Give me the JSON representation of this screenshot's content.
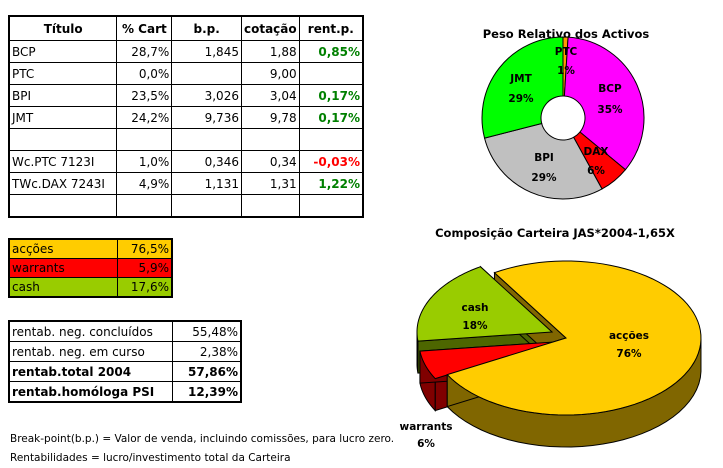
{
  "main_table": {
    "headers": [
      "Título",
      "% Cart",
      "b.p.",
      "cotação",
      "rent.p."
    ],
    "rows": [
      {
        "titulo": "BCP",
        "cart": "28,7%",
        "bp": "1,845",
        "cotacao": "1,88",
        "rent": "0,85%",
        "rent_sign": "pos"
      },
      {
        "titulo": "PTC",
        "cart": "0,0%",
        "bp": "",
        "cotacao": "9,00",
        "rent": "",
        "rent_sign": ""
      },
      {
        "titulo": "BPI",
        "cart": "23,5%",
        "bp": "3,026",
        "cotacao": "3,04",
        "rent": "0,17%",
        "rent_sign": "pos"
      },
      {
        "titulo": "JMT",
        "cart": "24,2%",
        "bp": "9,736",
        "cotacao": "9,78",
        "rent": "0,17%",
        "rent_sign": "pos"
      },
      {
        "titulo": "",
        "cart": "",
        "bp": "",
        "cotacao": "",
        "rent": "",
        "rent_sign": ""
      },
      {
        "titulo": "Wc.PTC 7123I",
        "cart": "1,0%",
        "bp": "0,346",
        "cotacao": "0,34",
        "rent": "-0,03%",
        "rent_sign": "neg"
      },
      {
        "titulo": "TWc.DAX 7243I",
        "cart": "4,9%",
        "bp": "1,131",
        "cotacao": "1,31",
        "rent": "1,22%",
        "rent_sign": "pos"
      },
      {
        "titulo": "",
        "cart": "",
        "bp": "",
        "cotacao": "",
        "rent": "",
        "rent_sign": ""
      }
    ]
  },
  "allocation_table": {
    "rows": [
      {
        "label": "acções",
        "value": "76,5%",
        "color": "#FFCC00"
      },
      {
        "label": "warrants",
        "value": "5,9%",
        "color": "#FF0000"
      },
      {
        "label": "cash",
        "value": "17,6%",
        "color": "#99CC00"
      }
    ]
  },
  "rentab_table": {
    "rows": [
      {
        "label": "rentab. neg. concluídos",
        "value": "55,48%",
        "bold": false
      },
      {
        "label": "rentab. neg. em curso",
        "value": "2,38%",
        "bold": false
      },
      {
        "label": "rentab.total 2004",
        "value": "57,86%",
        "bold": true
      },
      {
        "label": "rentab.homóloga PSI",
        "value": "12,39%",
        "bold": true
      }
    ]
  },
  "notes": {
    "line1": "Break-point(b.p.) = Valor de venda, incluindo comissões, para lucro zero.",
    "line2": "Rentabilidades = lucro/investimento total da Carteira"
  },
  "chart_data": [
    {
      "type": "pie",
      "variant": "doughnut",
      "title": "Peso Relativo dos Activos",
      "categories": [
        "PTC",
        "BCP",
        "DAX",
        "BPI",
        "JMT"
      ],
      "values": [
        1,
        35,
        6,
        29,
        29
      ],
      "labels": [
        "1%",
        "35%",
        "6%",
        "29%",
        "29%"
      ],
      "colors": [
        "#FF9900",
        "#FF00FF",
        "#FF0000",
        "#C0C0C0",
        "#00FF00"
      ],
      "legend": "none"
    },
    {
      "type": "pie",
      "variant": "3d-exploded",
      "title": "Composição Carteira JAS*2004-1,65X",
      "categories": [
        "acções",
        "warrants",
        "cash"
      ],
      "values": [
        76,
        6,
        18
      ],
      "labels": [
        "76%",
        "6%",
        "18%"
      ],
      "colors": [
        "#FFCC00",
        "#FF0000",
        "#99CC00"
      ],
      "legend": "none"
    }
  ]
}
